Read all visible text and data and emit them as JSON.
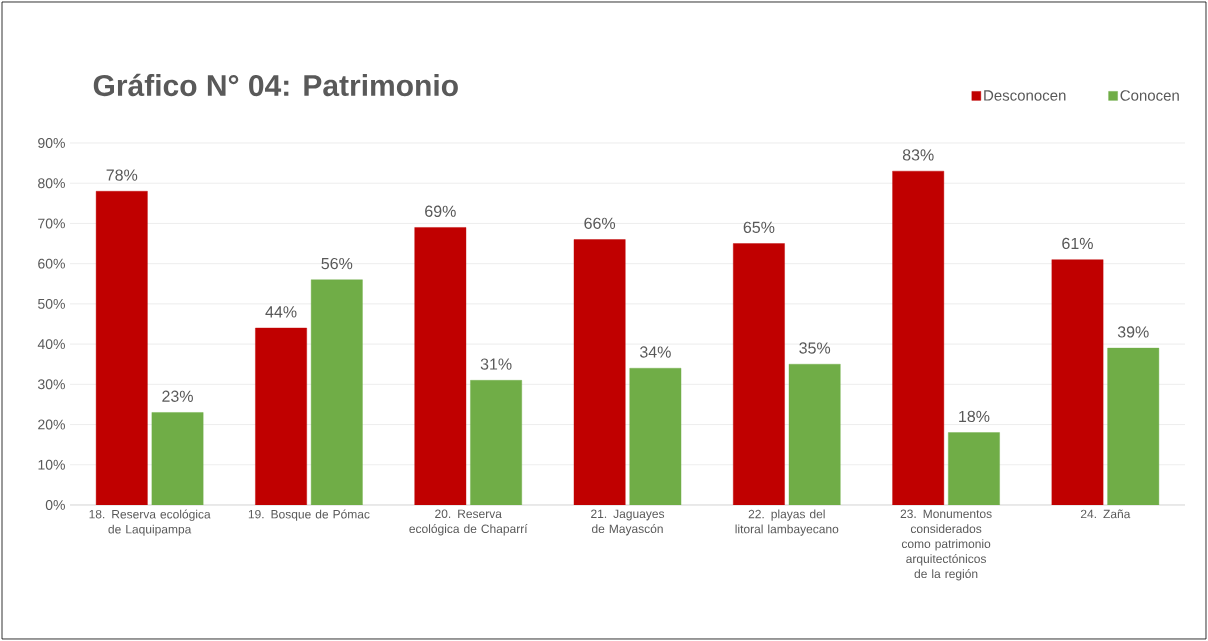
{
  "chart_data": {
    "type": "bar",
    "title": "Gráfico N° 04: Patrimonio",
    "categories": [
      "18. Reserva ecológica de Laquipampa",
      "19. Bosque de Pómac",
      "20. Reserva ecológica de Chaparrí",
      "21. Jaguayes de Mayascón",
      "22. playas del litoral lambayecano",
      "23. Monumentos considerados como patrimonio arquitectónicos de la región",
      "24. Zaña"
    ],
    "series": [
      {
        "name": "Desconocen",
        "color": "#c00000",
        "values": [
          78,
          44,
          69,
          66,
          65,
          83,
          61
        ],
        "value_labels": [
          "78%",
          "44%",
          "69%",
          "66%",
          "65%",
          "83%",
          "61%"
        ]
      },
      {
        "name": "Conocen",
        "color": "#70ad47",
        "values": [
          23,
          56,
          31,
          34,
          35,
          18,
          39
        ],
        "value_labels": [
          "23%",
          "56%",
          "31%",
          "34%",
          "35%",
          "18%",
          "39%"
        ]
      }
    ],
    "ylim": [
      0,
      90
    ],
    "yticks": [
      {
        "value": 0,
        "label": "0%"
      },
      {
        "value": 10,
        "label": "10%"
      },
      {
        "value": 20,
        "label": "20%"
      },
      {
        "value": 30,
        "label": "30%"
      },
      {
        "value": 40,
        "label": "40%"
      },
      {
        "value": 50,
        "label": "50%"
      },
      {
        "value": 60,
        "label": "60%"
      },
      {
        "value": 70,
        "label": "70%"
      },
      {
        "value": 80,
        "label": "80%"
      },
      {
        "value": 90,
        "label": "90%"
      }
    ],
    "grid": "y",
    "legend": "top right"
  }
}
